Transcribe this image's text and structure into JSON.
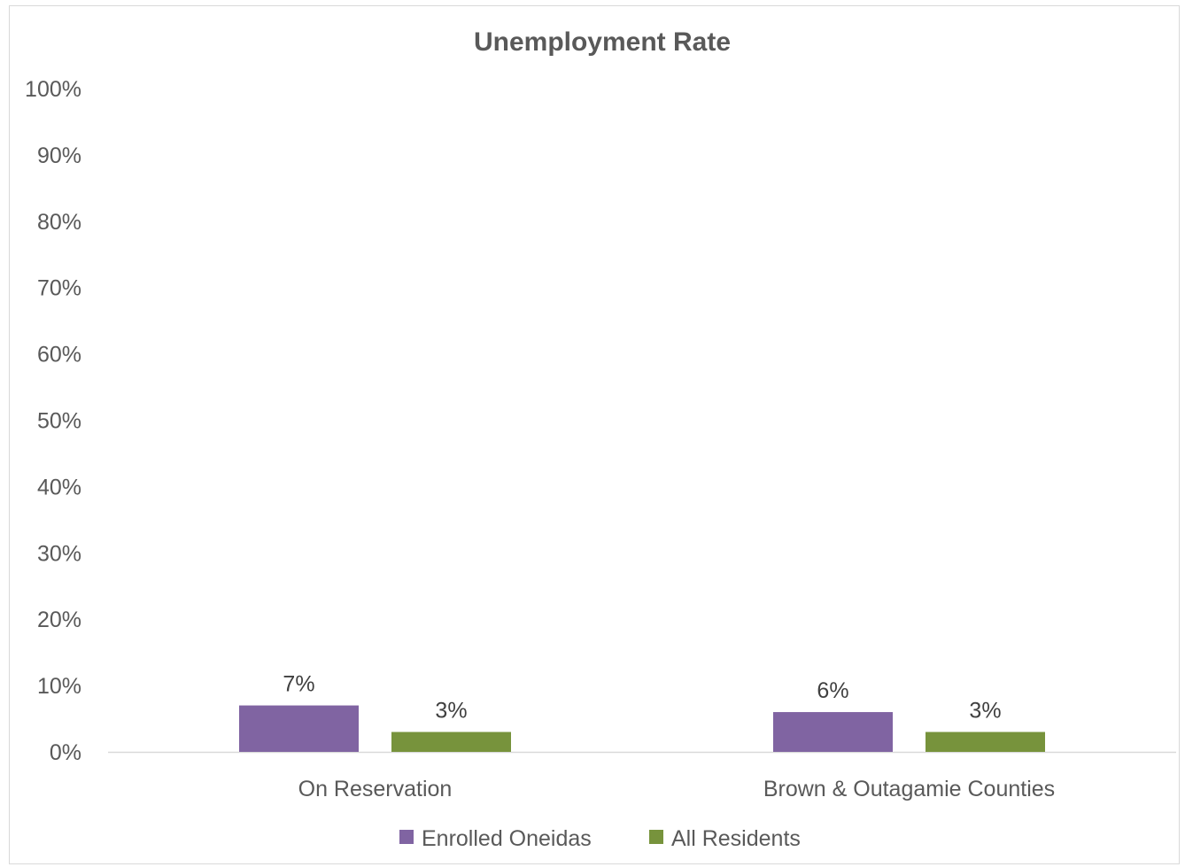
{
  "chart_data": {
    "type": "bar",
    "title": "Unemployment Rate",
    "xlabel": "",
    "ylabel": "",
    "categories": [
      "On Reservation",
      "Brown & Outagamie Counties"
    ],
    "series": [
      {
        "name": "Enrolled Oneidas",
        "values": [
          7,
          6
        ],
        "labels": [
          "7%",
          "6%"
        ],
        "color": "#8064a2"
      },
      {
        "name": "All Residents",
        "values": [
          3,
          3
        ],
        "labels": [
          "3%",
          "3%"
        ],
        "color": "#77933c"
      }
    ],
    "ylim": [
      0,
      100
    ],
    "y_ticks": [
      0,
      10,
      20,
      30,
      40,
      50,
      60,
      70,
      80,
      90,
      100
    ],
    "y_tick_labels": [
      "0%",
      "10%",
      "20%",
      "30%",
      "40%",
      "50%",
      "60%",
      "70%",
      "80%",
      "90%",
      "100%"
    ],
    "grid": false,
    "legend_position": "bottom",
    "axis_color": "#d9d9d9"
  }
}
